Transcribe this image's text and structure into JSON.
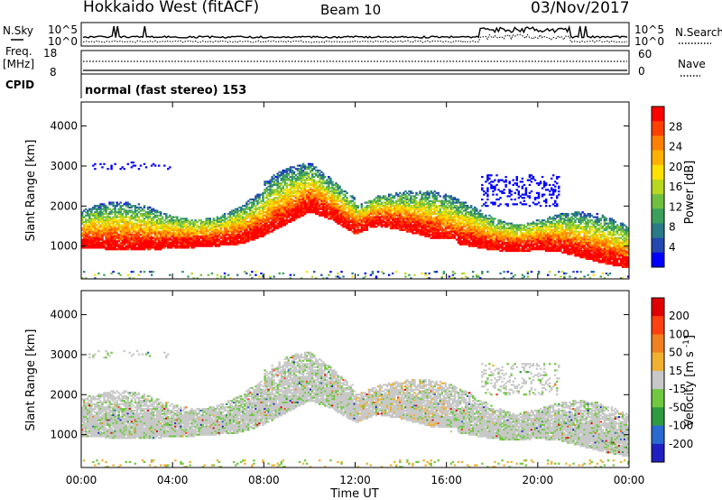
{
  "header": {
    "station": "Hokkaido West (fitACF)",
    "beam": "Beam 10",
    "date": "03/Nov/2017"
  },
  "status_panel": {
    "left_labels": {
      "nsky": "N.Sky",
      "freq": "Freq.",
      "freq_unit": "[MHz]",
      "cpid": "CPID"
    },
    "right_labels": {
      "nsearch": "N.Search",
      "nave": "Nave"
    },
    "noise_ticks": {
      "top": "10^5",
      "bottom": "10^0"
    },
    "noise_ticks_right": {
      "top": "10^5",
      "bottom": "10^0"
    },
    "freq_ticks": [
      "18",
      "8"
    ],
    "nave_ticks": [
      "60",
      "0"
    ],
    "cpid_text": "normal (fast stereo) 153"
  },
  "chart_data": [
    {
      "type": "heatmap",
      "panel": "power",
      "xlabel": "",
      "ylabel": "Slant Range [km]",
      "xlim": [
        0,
        24
      ],
      "ylim": [
        180,
        4600
      ],
      "yticks": [
        "1000",
        "2000",
        "3000",
        "4000"
      ],
      "colorbar": {
        "label": "Power [dB]",
        "ticks": [
          "4",
          "8",
          "12",
          "16",
          "20",
          "24",
          "28"
        ],
        "colors": [
          "#0000ff",
          "#2448b0",
          "#2a7a88",
          "#3aa05c",
          "#70c040",
          "#b8d820",
          "#ffe000",
          "#ffb000",
          "#ff8000",
          "#ff4000",
          "#ff0000"
        ]
      },
      "ridge_km": [
        [
          0,
          1400
        ],
        [
          2,
          1350
        ],
        [
          4,
          1380
        ],
        [
          6,
          1450
        ],
        [
          7,
          1500
        ],
        [
          8,
          1700
        ],
        [
          9,
          2000
        ],
        [
          10,
          2300
        ],
        [
          11,
          2100
        ],
        [
          12,
          1750
        ],
        [
          13,
          1950
        ],
        [
          14,
          1850
        ],
        [
          15,
          1700
        ],
        [
          16,
          1550
        ],
        [
          17,
          1450
        ],
        [
          18,
          1350
        ],
        [
          19,
          1300
        ],
        [
          20,
          1350
        ],
        [
          21,
          1300
        ],
        [
          22,
          1150
        ],
        [
          23,
          1000
        ],
        [
          24,
          900
        ]
      ]
    },
    {
      "type": "heatmap",
      "panel": "velocity",
      "xlabel": "Time UT",
      "ylabel": "Slant Range [km]",
      "xlim": [
        0,
        24
      ],
      "ylim": [
        180,
        4600
      ],
      "xticks": [
        "00:00",
        "04:00",
        "08:00",
        "12:00",
        "16:00",
        "20:00",
        "00:00"
      ],
      "yticks": [
        "1000",
        "2000",
        "3000",
        "4000"
      ],
      "colorbar": {
        "label": "Velocity [m s^-1]",
        "ticks": [
          "200",
          "100",
          "50",
          "15",
          "-15",
          "-50",
          "-100",
          "-200"
        ],
        "colors": [
          "#2020c0",
          "#2a6ad0",
          "#2f9a40",
          "#70c840",
          "#c8c8c8",
          "#f0b030",
          "#f08020",
          "#ff4010",
          "#e00000"
        ]
      }
    }
  ]
}
